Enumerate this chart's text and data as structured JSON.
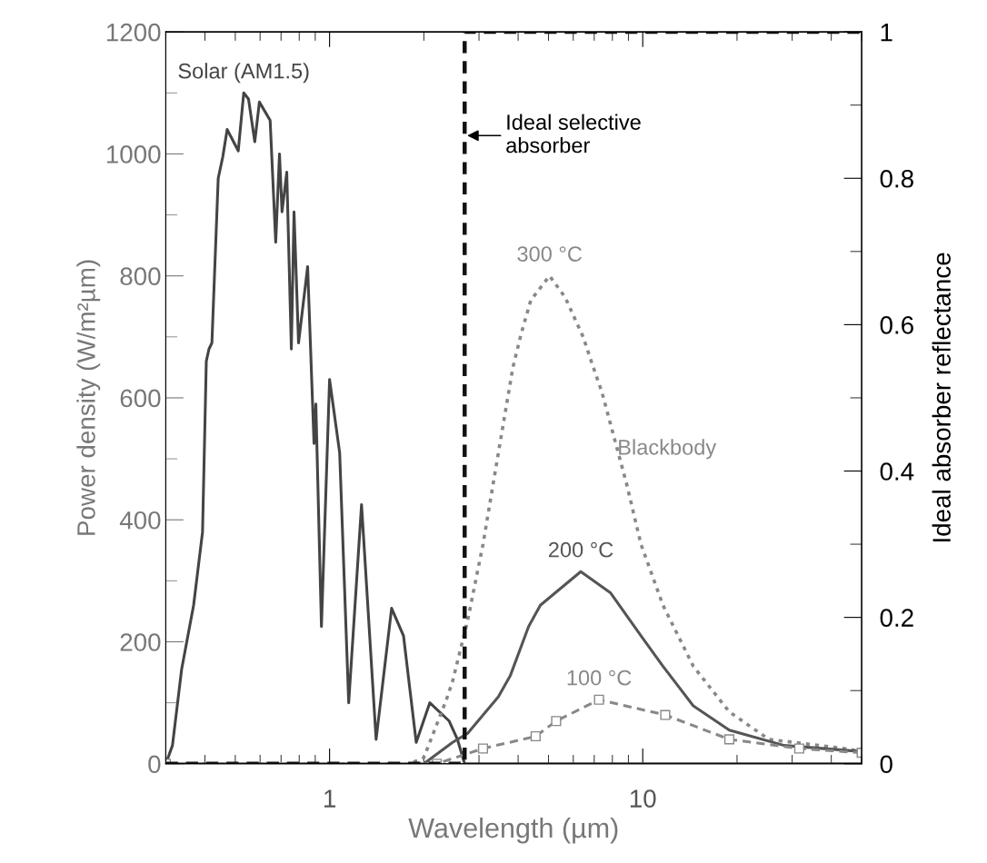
{
  "chart_data": {
    "type": "line",
    "xlabel": "Wavelength (µm)",
    "ylabel": "Power density (W/m²µm)",
    "y2label": "Ideal absorber reflectance",
    "log": "x",
    "xlim": [
      0.3,
      50
    ],
    "xticks": [
      1,
      10
    ],
    "ylim": [
      0,
      1200
    ],
    "yticks": [
      0,
      200,
      400,
      600,
      800,
      1000,
      1200
    ],
    "y2lim": [
      0,
      1
    ],
    "y2ticks": [
      0,
      0.2,
      0.4,
      0.6,
      0.8,
      1
    ],
    "grid": false,
    "legend": false,
    "series": [
      {
        "name": "Solar (AM1.5)",
        "color": "#444444",
        "line_style": "solid",
        "x": [
          0.3,
          0.315,
          0.337,
          0.368,
          0.393,
          0.404,
          0.412,
          0.421,
          0.441,
          0.456,
          0.471,
          0.511,
          0.532,
          0.551,
          0.577,
          0.597,
          0.646,
          0.673,
          0.692,
          0.705,
          0.73,
          0.755,
          0.77,
          0.796,
          0.851,
          0.892,
          0.904,
          0.942,
          1.0,
          1.077,
          1.151,
          1.265,
          1.408,
          1.578,
          1.722,
          1.891,
          2.09,
          2.41,
          2.56,
          2.7,
          50
        ],
        "values": [
          0,
          30,
          155,
          260,
          380,
          660,
          680,
          690,
          960,
          995,
          1040,
          1005,
          1100,
          1090,
          1020,
          1085,
          1055,
          855,
          1000,
          905,
          970,
          680,
          905,
          690,
          815,
          525,
          590,
          225,
          630,
          510,
          100,
          425,
          40,
          255,
          210,
          35,
          100,
          70,
          40,
          0,
          0
        ]
      },
      {
        "name": "300 °C",
        "color": "#888888",
        "line_style": "dotted",
        "x": [
          0.3,
          1.8,
          2.0,
          2.36,
          2.47,
          2.76,
          3.09,
          3.46,
          3.85,
          4.09,
          4.39,
          5.04,
          5.65,
          6.45,
          6.9,
          7.4,
          8.87,
          9.87,
          11.6,
          14.5,
          18.9,
          25.3,
          44,
          50
        ],
        "values": [
          0,
          0,
          10,
          105,
          135,
          235,
          360,
          510,
          650,
          705,
          760,
          800,
          765,
          700,
          655,
          610,
          460,
          360,
          260,
          160,
          85,
          40,
          25,
          20
        ]
      },
      {
        "name": "200 °C",
        "color": "#555555",
        "line_style": "solid",
        "x": [
          0.3,
          2.0,
          2.47,
          2.76,
          3.46,
          3.78,
          4.32,
          4.71,
          6.34,
          7.9,
          9.87,
          11.6,
          14.5,
          18.9,
          28.3,
          50
        ],
        "values": [
          0,
          0,
          35,
          50,
          110,
          145,
          225,
          260,
          315,
          280,
          210,
          160,
          95,
          55,
          30,
          20
        ]
      },
      {
        "name": "100 °C",
        "color": "#888888",
        "line_style": "dashed",
        "marker": "square",
        "x": [
          0.3,
          2.2,
          3.09,
          4.55,
          5.29,
          7.25,
          11.8,
          18.9,
          31.6,
          50
        ],
        "values": [
          0,
          0,
          25,
          45,
          70,
          105,
          80,
          40,
          25,
          18
        ]
      },
      {
        "type": "step",
        "axis": "y2",
        "color": "#111111",
        "line_style": "dashed",
        "x": [
          0.3,
          2.7,
          50
        ],
        "values": [
          0,
          1,
          1
        ]
      }
    ],
    "annotations": [
      {
        "text": "Ideal selective\nabsorber",
        "x": 2.7,
        "y": 1030
      },
      "Blackbody"
    ]
  }
}
